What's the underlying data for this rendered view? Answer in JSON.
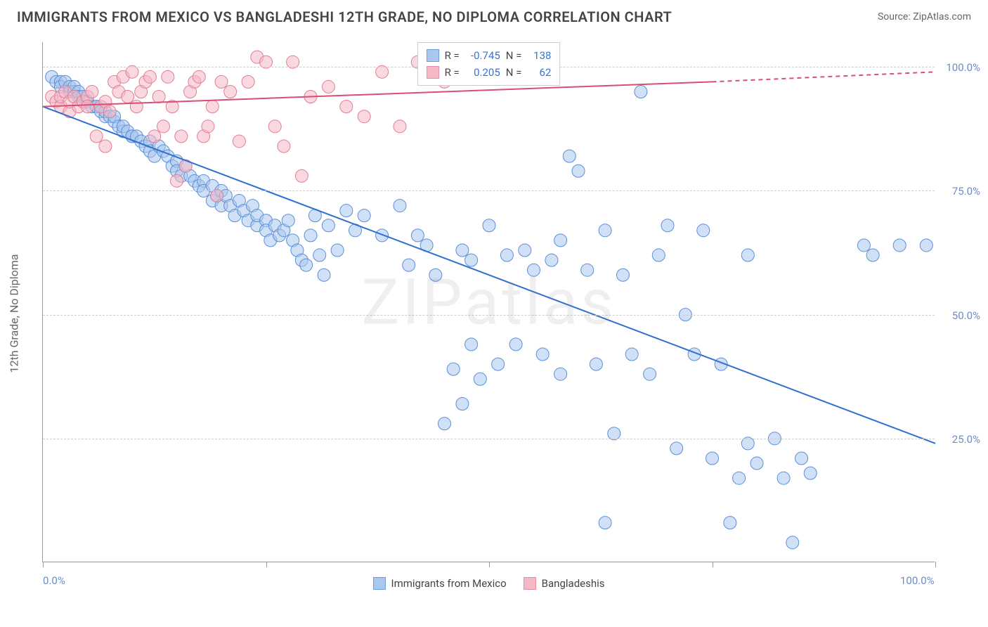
{
  "title": "IMMIGRANTS FROM MEXICO VS BANGLADESHI 12TH GRADE, NO DIPLOMA CORRELATION CHART",
  "source_prefix": "Source: ",
  "source_name": "ZipAtlas.com",
  "watermark": "ZIPatlas",
  "y_axis_label": "12th Grade, No Diploma",
  "legend_series": [
    {
      "label": "Immigrants from Mexico",
      "fill": "#aac7ef",
      "stroke": "#6a9de0"
    },
    {
      "label": "Bangladeshis",
      "fill": "#f5b8c4",
      "stroke": "#e98ba0"
    }
  ],
  "correlation_box": {
    "rows": [
      {
        "swatch_fill": "#aac7ef",
        "swatch_stroke": "#6a9de0",
        "r_label": "R =",
        "r_value": "-0.745",
        "n_label": "N =",
        "n_value": "138"
      },
      {
        "swatch_fill": "#f5b8c4",
        "swatch_stroke": "#e98ba0",
        "r_label": "R =",
        "r_value": "0.205",
        "n_label": "N =",
        "n_value": "62"
      }
    ]
  },
  "chart": {
    "type": "scatter",
    "xlim": [
      0,
      100
    ],
    "ylim": [
      0,
      105
    ],
    "x_ticks": [
      0,
      25,
      50,
      75,
      100
    ],
    "x_tick_labels": {
      "0": "0.0%",
      "100": "100.0%"
    },
    "y_ticks": [
      25,
      50,
      75,
      100
    ],
    "y_tick_labels": {
      "25": "25.0%",
      "50": "50.0%",
      "75": "75.0%",
      "100": "100.0%"
    },
    "grid_color": "#cccccc",
    "background_color": "#ffffff",
    "marker_radius": 9,
    "marker_opacity": 0.55,
    "line_width": 2,
    "series": [
      {
        "name": "mexico",
        "color_fill": "#aac7ef",
        "color_stroke": "#5b8fd6",
        "trend_line": {
          "x1": 0,
          "y1": 92,
          "x2": 100,
          "y2": 24,
          "color": "#2f6fd0"
        },
        "points": [
          [
            1,
            98
          ],
          [
            1.5,
            97
          ],
          [
            2,
            97
          ],
          [
            2,
            96
          ],
          [
            2.5,
            97
          ],
          [
            3,
            96
          ],
          [
            3,
            95
          ],
          [
            3.5,
            95
          ],
          [
            3.5,
            96
          ],
          [
            4,
            95
          ],
          [
            4,
            94
          ],
          [
            4.5,
            94
          ],
          [
            5,
            93
          ],
          [
            5,
            93
          ],
          [
            5.5,
            92
          ],
          [
            6,
            92
          ],
          [
            6,
            92
          ],
          [
            6.5,
            91
          ],
          [
            7,
            90
          ],
          [
            7,
            91
          ],
          [
            7.5,
            90
          ],
          [
            8,
            89
          ],
          [
            8,
            90
          ],
          [
            8.5,
            88
          ],
          [
            9,
            87
          ],
          [
            9,
            88
          ],
          [
            9.5,
            87
          ],
          [
            10,
            86
          ],
          [
            10,
            86
          ],
          [
            10.5,
            86
          ],
          [
            11,
            85
          ],
          [
            11.5,
            84
          ],
          [
            12,
            85
          ],
          [
            12,
            83
          ],
          [
            12.5,
            82
          ],
          [
            13,
            84
          ],
          [
            13.5,
            83
          ],
          [
            14,
            82
          ],
          [
            14.5,
            80
          ],
          [
            15,
            81
          ],
          [
            15,
            79
          ],
          [
            15.5,
            78
          ],
          [
            16,
            80
          ],
          [
            16.5,
            78
          ],
          [
            17,
            77
          ],
          [
            17.5,
            76
          ],
          [
            18,
            77
          ],
          [
            18,
            75
          ],
          [
            19,
            76
          ],
          [
            19,
            73
          ],
          [
            19.5,
            74
          ],
          [
            20,
            75
          ],
          [
            20,
            72
          ],
          [
            20.5,
            74
          ],
          [
            21,
            72
          ],
          [
            21.5,
            70
          ],
          [
            22,
            73
          ],
          [
            22.5,
            71
          ],
          [
            23,
            69
          ],
          [
            23.5,
            72
          ],
          [
            24,
            68
          ],
          [
            24,
            70
          ],
          [
            25,
            69
          ],
          [
            25,
            67
          ],
          [
            25.5,
            65
          ],
          [
            26,
            68
          ],
          [
            26.5,
            66
          ],
          [
            27,
            67
          ],
          [
            27.5,
            69
          ],
          [
            28,
            65
          ],
          [
            28.5,
            63
          ],
          [
            29,
            61
          ],
          [
            29.5,
            60
          ],
          [
            30,
            66
          ],
          [
            30.5,
            70
          ],
          [
            31,
            62
          ],
          [
            31.5,
            58
          ],
          [
            32,
            68
          ],
          [
            33,
            63
          ],
          [
            34,
            71
          ],
          [
            35,
            67
          ],
          [
            36,
            70
          ],
          [
            38,
            66
          ],
          [
            40,
            72
          ],
          [
            41,
            60
          ],
          [
            42,
            66
          ],
          [
            43,
            64
          ],
          [
            44,
            58
          ],
          [
            45,
            28
          ],
          [
            46,
            39
          ],
          [
            47,
            63
          ],
          [
            47,
            32
          ],
          [
            48,
            44
          ],
          [
            48,
            61
          ],
          [
            49,
            37
          ],
          [
            50,
            68
          ],
          [
            51,
            40
          ],
          [
            52,
            62
          ],
          [
            53,
            44
          ],
          [
            54,
            63
          ],
          [
            55,
            59
          ],
          [
            56,
            42
          ],
          [
            57,
            61
          ],
          [
            58,
            38
          ],
          [
            58,
            65
          ],
          [
            59,
            82
          ],
          [
            60,
            79
          ],
          [
            61,
            59
          ],
          [
            62,
            40
          ],
          [
            63,
            67
          ],
          [
            63,
            8
          ],
          [
            64,
            26
          ],
          [
            65,
            58
          ],
          [
            66,
            42
          ],
          [
            67,
            95
          ],
          [
            68,
            38
          ],
          [
            69,
            62
          ],
          [
            70,
            68
          ],
          [
            71,
            23
          ],
          [
            72,
            50
          ],
          [
            73,
            42
          ],
          [
            74,
            67
          ],
          [
            75,
            21
          ],
          [
            76,
            40
          ],
          [
            77,
            8
          ],
          [
            78,
            17
          ],
          [
            79,
            62
          ],
          [
            79,
            24
          ],
          [
            80,
            20
          ],
          [
            82,
            25
          ],
          [
            83,
            17
          ],
          [
            84,
            4
          ],
          [
            85,
            21
          ],
          [
            86,
            18
          ],
          [
            92,
            64
          ],
          [
            93,
            62
          ],
          [
            96,
            64
          ],
          [
            99,
            64
          ]
        ]
      },
      {
        "name": "bangladeshi",
        "color_fill": "#f5b8c4",
        "color_stroke": "#e07e95",
        "trend_line_solid": {
          "x1": 0,
          "y1": 92,
          "x2": 75,
          "y2": 97,
          "color": "#d94f73"
        },
        "trend_line_dashed": {
          "x1": 75,
          "y1": 97,
          "x2": 100,
          "y2": 99,
          "color": "#d94f73"
        },
        "points": [
          [
            1,
            94
          ],
          [
            1.5,
            93
          ],
          [
            2,
            92
          ],
          [
            2,
            94
          ],
          [
            2.5,
            95
          ],
          [
            3,
            91
          ],
          [
            3,
            93
          ],
          [
            3.5,
            94
          ],
          [
            4,
            92
          ],
          [
            4.5,
            93
          ],
          [
            5,
            94
          ],
          [
            5,
            92
          ],
          [
            5.5,
            95
          ],
          [
            6,
            86
          ],
          [
            6.5,
            92
          ],
          [
            7,
            93
          ],
          [
            7,
            84
          ],
          [
            7.5,
            91
          ],
          [
            8,
            97
          ],
          [
            8.5,
            95
          ],
          [
            9,
            98
          ],
          [
            9.5,
            94
          ],
          [
            10,
            99
          ],
          [
            10.5,
            92
          ],
          [
            11,
            95
          ],
          [
            11.5,
            97
          ],
          [
            12,
            98
          ],
          [
            12.5,
            86
          ],
          [
            13,
            94
          ],
          [
            13.5,
            88
          ],
          [
            14,
            98
          ],
          [
            14.5,
            92
          ],
          [
            15,
            77
          ],
          [
            15.5,
            86
          ],
          [
            16,
            80
          ],
          [
            16.5,
            95
          ],
          [
            17,
            97
          ],
          [
            17.5,
            98
          ],
          [
            18,
            86
          ],
          [
            18.5,
            88
          ],
          [
            19,
            92
          ],
          [
            19.5,
            74
          ],
          [
            20,
            97
          ],
          [
            21,
            95
          ],
          [
            22,
            85
          ],
          [
            23,
            97
          ],
          [
            24,
            102
          ],
          [
            25,
            101
          ],
          [
            26,
            88
          ],
          [
            27,
            84
          ],
          [
            28,
            101
          ],
          [
            29,
            78
          ],
          [
            30,
            94
          ],
          [
            32,
            96
          ],
          [
            34,
            92
          ],
          [
            36,
            90
          ],
          [
            38,
            99
          ],
          [
            40,
            88
          ],
          [
            42,
            101
          ],
          [
            45,
            97
          ],
          [
            52,
            100
          ],
          [
            53,
            98
          ]
        ]
      }
    ]
  }
}
